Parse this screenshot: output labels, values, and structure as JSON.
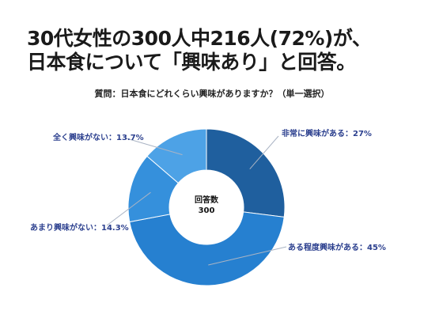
{
  "headline": {
    "line1": "30代女性の300人中216人(72%)が、",
    "line2": "日本食について「興味あり」と回答。"
  },
  "question": "質問：日本食にどれくらい興味がありますか？（単一選択）",
  "center": {
    "line1": "回答数",
    "line2": "300"
  },
  "chart_data": {
    "type": "pie",
    "donut": true,
    "categories": [
      "非常に興味がある",
      "ある程度興味がある",
      "あまり興味がない",
      "全く興味がない"
    ],
    "values": [
      27,
      45,
      14.3,
      13.7
    ],
    "unit": "%",
    "colors": [
      "#1f5f9e",
      "#2680d0",
      "#3590dc",
      "#4da2e6"
    ],
    "labels": [
      "非常に興味がある：27%",
      "ある程度興味がある：45%",
      "あまり興味がない：14.3%",
      "全く興味がない：13.7%"
    ],
    "total_label": "回答数",
    "total": "300"
  }
}
